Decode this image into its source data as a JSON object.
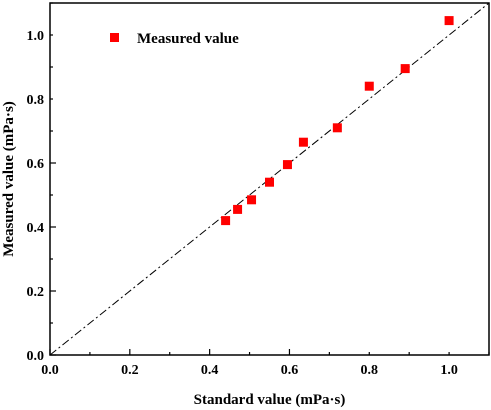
{
  "chart_data": {
    "type": "scatter",
    "xlabel": "Standard value (mPa·s)",
    "ylabel": "Measured value (mPa·s)",
    "xlim": [
      0.0,
      1.1
    ],
    "ylim": [
      0.0,
      1.1
    ],
    "xticks": [
      "0.0",
      "0.2",
      "0.4",
      "0.6",
      "0.8",
      "1.0"
    ],
    "yticks": [
      "0.0",
      "0.2",
      "0.4",
      "0.6",
      "0.8",
      "1.0"
    ],
    "grid": false,
    "legend_position": "top-left",
    "series": [
      {
        "name": "Measured value",
        "marker": "square",
        "color": "#ff0000",
        "x": [
          0.44,
          0.47,
          0.505,
          0.55,
          0.595,
          0.635,
          0.72,
          0.8,
          0.89,
          1.0
        ],
        "y": [
          0.42,
          0.455,
          0.485,
          0.54,
          0.595,
          0.665,
          0.71,
          0.84,
          0.895,
          1.045
        ]
      }
    ],
    "reference_line": {
      "from": [
        0.0,
        0.0
      ],
      "to": [
        1.1,
        1.1
      ],
      "style": "dash-dot",
      "color": "#000000"
    }
  }
}
